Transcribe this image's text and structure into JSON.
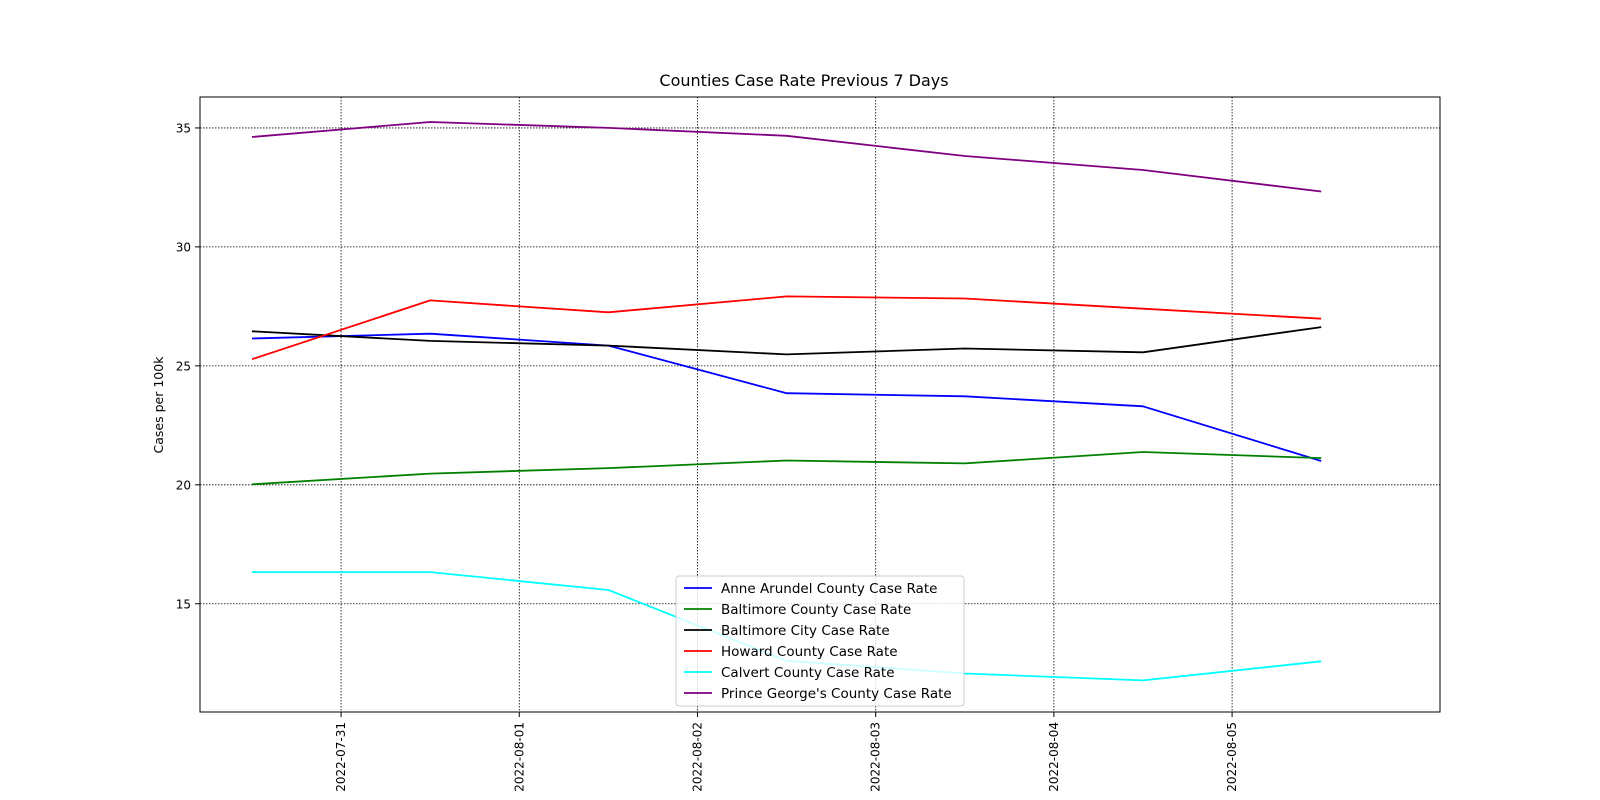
{
  "chart_data": {
    "type": "line",
    "title": "Counties Case Rate Previous 7 Days",
    "xlabel": "",
    "ylabel": "Cases per 100k",
    "x": [
      "2022-07-30 12:00",
      "2022-07-31 12:00",
      "2022-08-01 12:00",
      "2022-08-02 12:00",
      "2022-08-03 12:00",
      "2022-08-04 12:00",
      "2022-08-05 12:00"
    ],
    "x_ticks": [
      "2022-07-31",
      "2022-08-01",
      "2022-08-02",
      "2022-08-03",
      "2022-08-04",
      "2022-08-05"
    ],
    "y_ticks": [
      15,
      20,
      25,
      30,
      35
    ],
    "xlim": [
      "2022-07-30 05:00",
      "2022-08-06 04:00"
    ],
    "ylim": [
      10.45,
      36.3
    ],
    "grid": true,
    "legend_position": "bottom-center",
    "series": [
      {
        "name": "Anne Arundel County Case Rate",
        "color": "#0000ff",
        "values": [
          26.15,
          26.35,
          25.85,
          23.85,
          23.72,
          23.3,
          21.0
        ]
      },
      {
        "name": "Baltimore County Case Rate",
        "color": "#008000",
        "values": [
          20.02,
          20.47,
          20.7,
          21.02,
          20.9,
          21.38,
          21.12
        ]
      },
      {
        "name": "Baltimore City Case Rate",
        "color": "#000000",
        "values": [
          26.45,
          26.05,
          25.85,
          25.48,
          25.73,
          25.57,
          26.63
        ]
      },
      {
        "name": "Howard County Case Rate",
        "color": "#ff0000",
        "values": [
          25.28,
          27.75,
          27.25,
          27.92,
          27.83,
          27.4,
          26.98
        ]
      },
      {
        "name": "Calvert County Case Rate",
        "color": "#00ffff",
        "values": [
          16.33,
          16.33,
          15.58,
          12.6,
          12.07,
          11.78,
          12.58
        ]
      },
      {
        "name": "Prince George's County Case Rate",
        "color": "#800080",
        "values": [
          34.62,
          35.25,
          35.0,
          34.67,
          33.82,
          33.23,
          32.33
        ]
      }
    ]
  }
}
